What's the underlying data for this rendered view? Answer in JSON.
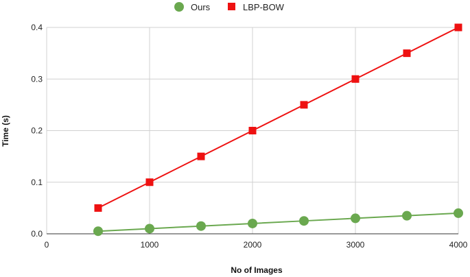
{
  "chart_data": {
    "type": "line",
    "title": "",
    "xlabel": "No of Images",
    "ylabel": "Time (s)",
    "x": [
      500,
      1000,
      1500,
      2000,
      2500,
      3000,
      3500,
      4000
    ],
    "xlim": [
      0,
      4000
    ],
    "ylim": [
      0,
      0.4
    ],
    "xticks": [
      "0",
      "1000",
      "2000",
      "3000",
      "4000"
    ],
    "yticks": [
      "0.0",
      "0.1",
      "0.2",
      "0.3",
      "0.4"
    ],
    "grid": true,
    "legend_position": "top-center",
    "series": [
      {
        "name": "Ours",
        "marker": "circle",
        "color": "#6aa84f",
        "values": [
          0.005,
          0.01,
          0.015,
          0.02,
          0.025,
          0.03,
          0.035,
          0.04
        ]
      },
      {
        "name": "LBP-BOW",
        "marker": "square",
        "color": "#ee1111",
        "values": [
          0.05,
          0.1,
          0.15,
          0.2,
          0.25,
          0.3,
          0.35,
          0.4
        ]
      }
    ]
  }
}
